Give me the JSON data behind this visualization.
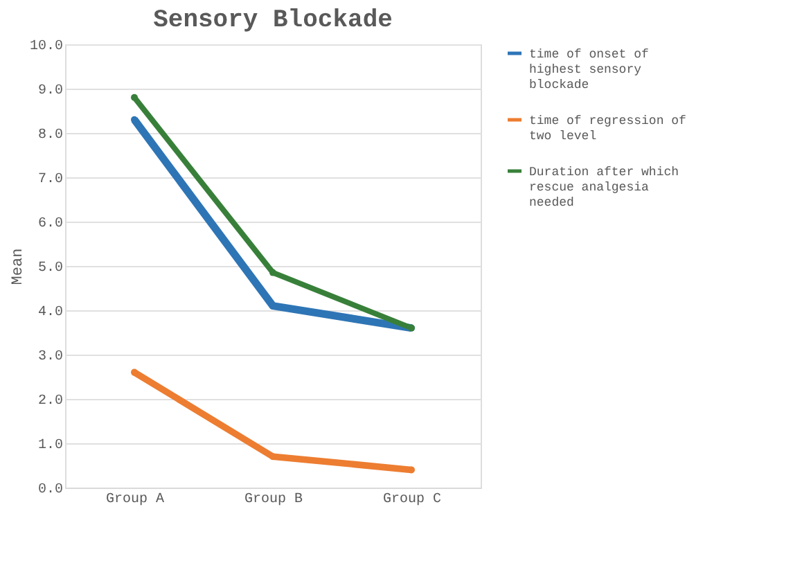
{
  "chart_data": {
    "type": "line",
    "title": "Sensory Blockade",
    "ylabel": "Mean",
    "categories": [
      "Group A",
      "Group B",
      "Group C"
    ],
    "series": [
      {
        "name": "time of onset of highest sensory blockade",
        "color": "#2e75b6",
        "values": [
          8.3,
          4.1,
          3.6
        ]
      },
      {
        "name": "time of regression of two level",
        "color": "#ed7d31",
        "values": [
          2.6,
          0.7,
          0.4
        ]
      },
      {
        "name": "Duration after which rescue analgesia needed",
        "color": "#38803a",
        "values": [
          8.8,
          4.85,
          3.6
        ]
      }
    ],
    "ylim": [
      0,
      10
    ],
    "yticks": [
      {
        "value": 0,
        "label": "0.0"
      },
      {
        "value": 1,
        "label": "1.0"
      },
      {
        "value": 2,
        "label": "2.0"
      },
      {
        "value": 3,
        "label": "3.0"
      },
      {
        "value": 4,
        "label": "4.0"
      },
      {
        "value": 5,
        "label": "5.0"
      },
      {
        "value": 6,
        "label": "6.0"
      },
      {
        "value": 7,
        "label": "7.0"
      },
      {
        "value": 8,
        "label": "8.0"
      },
      {
        "value": 9,
        "label": "9.0"
      },
      {
        "value": 10,
        "label": "10.0"
      }
    ],
    "grid": "y",
    "legend": "right",
    "marker": "circle",
    "line_style": "solid"
  }
}
